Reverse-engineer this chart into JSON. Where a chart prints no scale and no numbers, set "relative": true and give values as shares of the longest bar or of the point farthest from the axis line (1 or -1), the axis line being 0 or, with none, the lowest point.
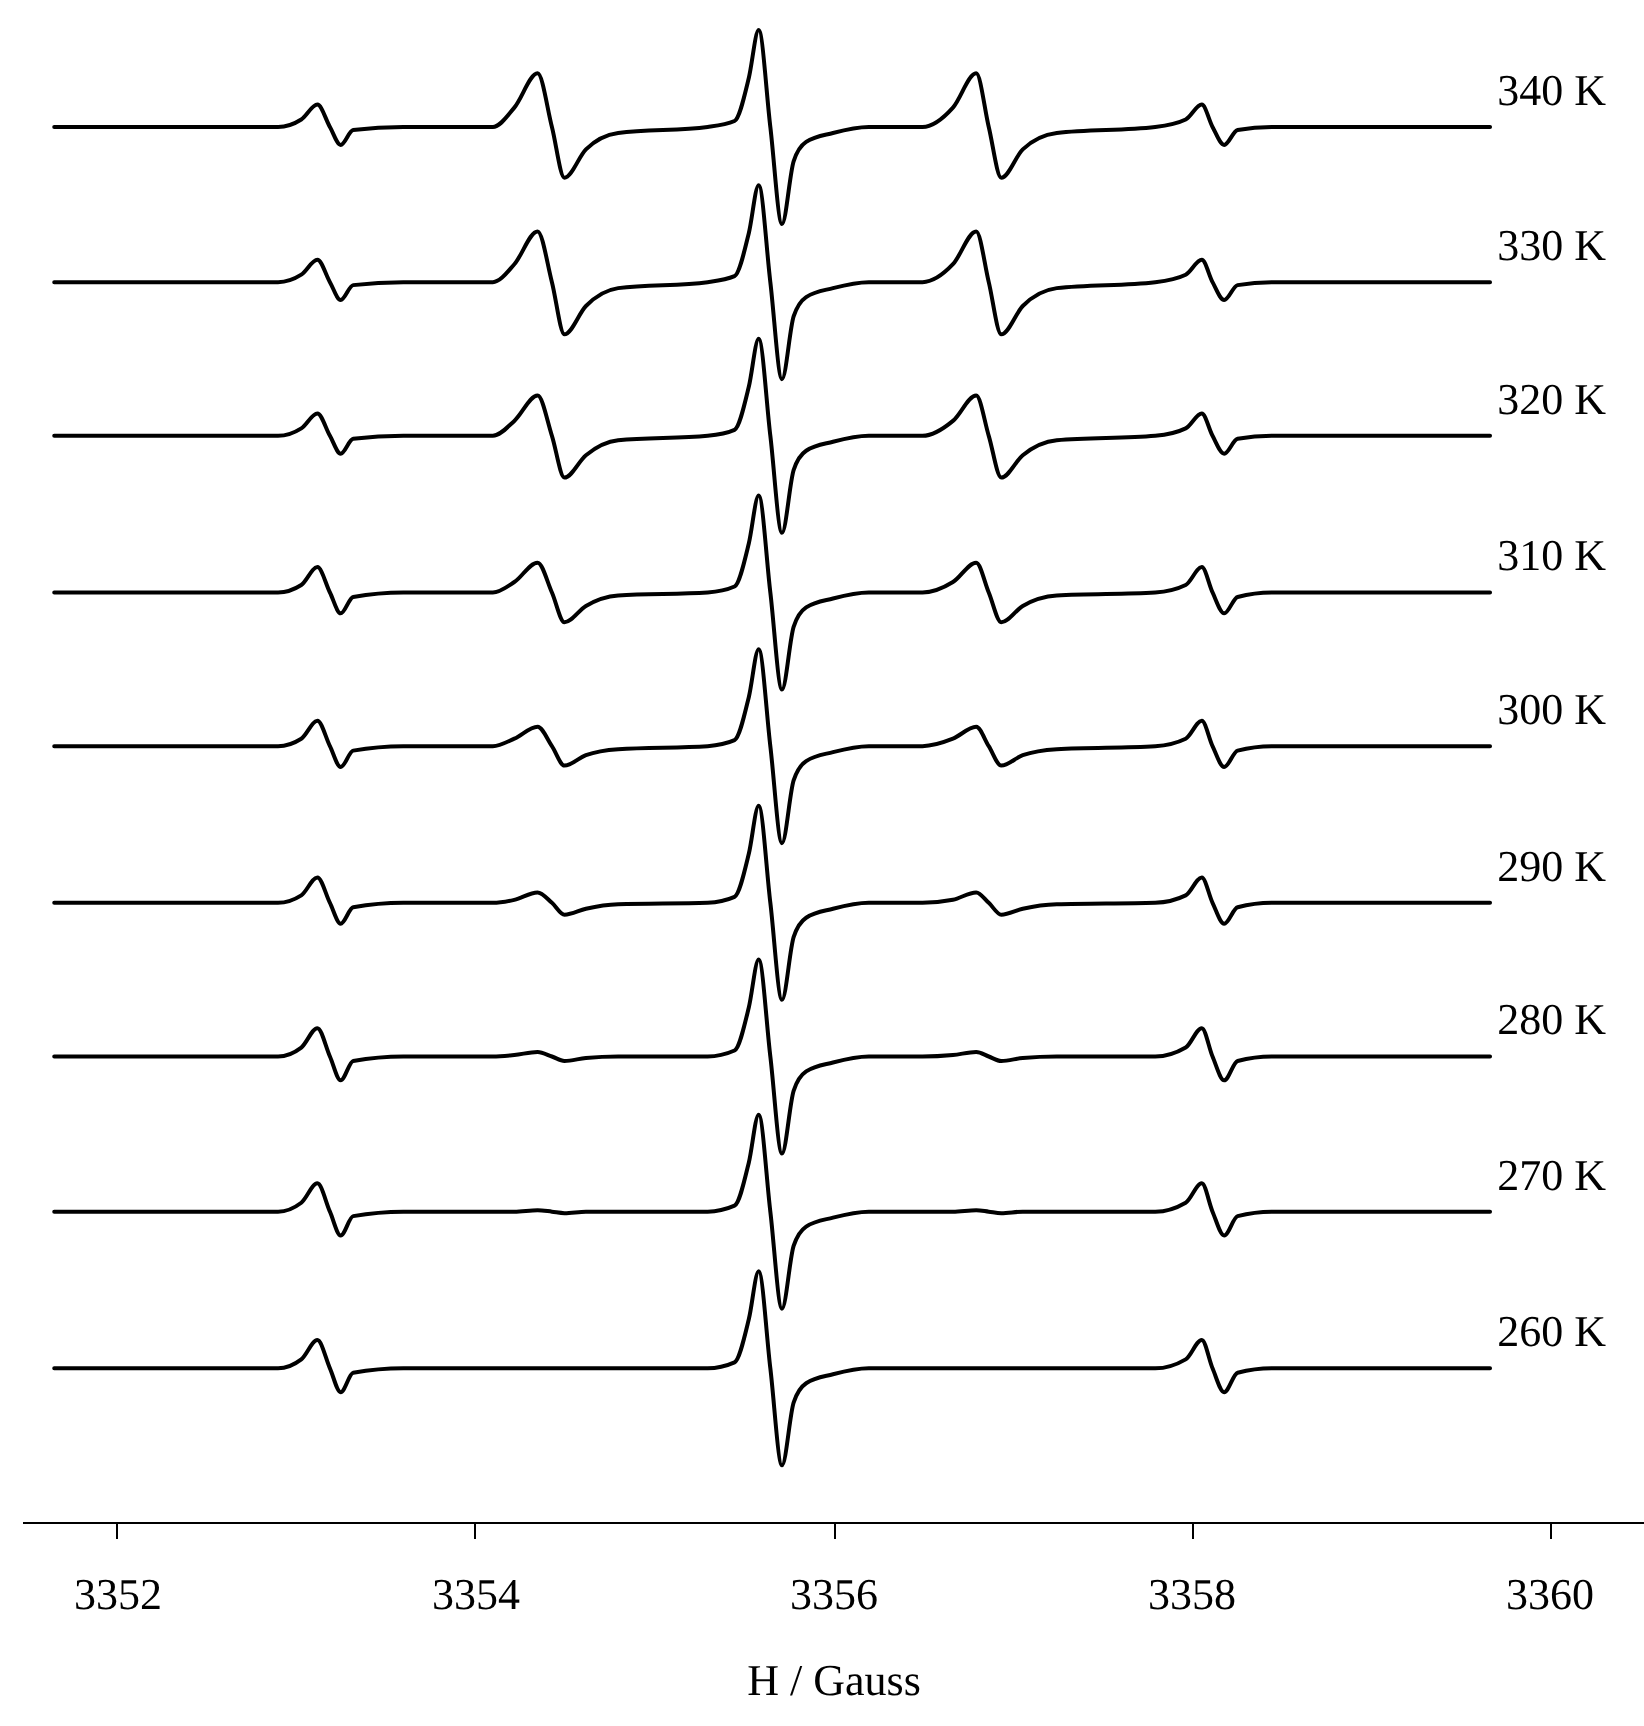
{
  "chart_data": {
    "type": "line",
    "xlabel": "H / Gauss",
    "relative": true,
    "grid": false,
    "marker": "none",
    "line_style": "solid",
    "xlim": [
      3351.47,
      3360.53
    ],
    "xticks": [
      3352,
      3354,
      3356,
      3358,
      3360
    ],
    "x": [
      3351.65,
      3352.9,
      3353.03,
      3353.12,
      3353.19,
      3353.25,
      3353.32,
      3353.6,
      3354.1,
      3354.22,
      3354.35,
      3354.43,
      3354.5,
      3354.62,
      3354.8,
      3355.3,
      3355.45,
      3355.53,
      3355.585,
      3355.65,
      3355.715,
      3355.78,
      3355.85,
      3356.0,
      3356.2,
      3356.5,
      3356.67,
      3356.8,
      3356.87,
      3356.94,
      3357.06,
      3357.25,
      3357.8,
      3357.97,
      3358.06,
      3358.12,
      3358.185,
      3358.26,
      3358.45,
      3359.67
    ],
    "series": [
      {
        "name": "340 K",
        "color": "#000000",
        "values": [
          0.935,
          0.935,
          0.94,
          0.95,
          0.935,
          0.923,
          0.933,
          0.935,
          0.935,
          0.948,
          0.971,
          0.935,
          0.901,
          0.92,
          0.931,
          0.935,
          0.939,
          0.968,
          1.0,
          0.935,
          0.87,
          0.912,
          0.925,
          0.931,
          0.935,
          0.935,
          0.948,
          0.971,
          0.935,
          0.901,
          0.92,
          0.931,
          0.935,
          0.94,
          0.95,
          0.935,
          0.923,
          0.933,
          0.935,
          0.935
        ]
      },
      {
        "name": "330 K",
        "color": "#000000",
        "values": [
          0.831,
          0.831,
          0.836,
          0.846,
          0.831,
          0.819,
          0.829,
          0.831,
          0.831,
          0.843,
          0.865,
          0.831,
          0.796,
          0.815,
          0.827,
          0.831,
          0.835,
          0.864,
          0.896,
          0.831,
          0.766,
          0.808,
          0.821,
          0.827,
          0.831,
          0.831,
          0.843,
          0.865,
          0.831,
          0.796,
          0.815,
          0.827,
          0.831,
          0.836,
          0.846,
          0.831,
          0.819,
          0.829,
          0.831,
          0.831
        ]
      },
      {
        "name": "320 K",
        "color": "#000000",
        "values": [
          0.728,
          0.728,
          0.733,
          0.743,
          0.728,
          0.716,
          0.726,
          0.728,
          0.728,
          0.738,
          0.755,
          0.728,
          0.7,
          0.715,
          0.725,
          0.728,
          0.732,
          0.761,
          0.793,
          0.728,
          0.663,
          0.705,
          0.718,
          0.724,
          0.728,
          0.728,
          0.738,
          0.755,
          0.728,
          0.7,
          0.715,
          0.725,
          0.728,
          0.733,
          0.743,
          0.728,
          0.716,
          0.726,
          0.728,
          0.728
        ]
      },
      {
        "name": "310 K",
        "color": "#000000",
        "values": [
          0.623,
          0.623,
          0.628,
          0.64,
          0.623,
          0.609,
          0.62,
          0.623,
          0.623,
          0.63,
          0.643,
          0.623,
          0.603,
          0.614,
          0.621,
          0.623,
          0.627,
          0.656,
          0.688,
          0.623,
          0.558,
          0.6,
          0.613,
          0.619,
          0.623,
          0.623,
          0.63,
          0.643,
          0.623,
          0.603,
          0.614,
          0.621,
          0.623,
          0.628,
          0.64,
          0.623,
          0.609,
          0.62,
          0.623,
          0.623
        ]
      },
      {
        "name": "300 K",
        "color": "#000000",
        "values": [
          0.52,
          0.52,
          0.525,
          0.537,
          0.52,
          0.506,
          0.517,
          0.52,
          0.52,
          0.525,
          0.533,
          0.52,
          0.507,
          0.514,
          0.518,
          0.52,
          0.524,
          0.553,
          0.585,
          0.52,
          0.455,
          0.497,
          0.51,
          0.516,
          0.52,
          0.52,
          0.525,
          0.533,
          0.52,
          0.507,
          0.514,
          0.518,
          0.52,
          0.525,
          0.537,
          0.52,
          0.506,
          0.517,
          0.52,
          0.52
        ]
      },
      {
        "name": "290 K",
        "color": "#000000",
        "values": [
          0.415,
          0.415,
          0.42,
          0.432,
          0.415,
          0.401,
          0.412,
          0.415,
          0.415,
          0.417,
          0.422,
          0.415,
          0.407,
          0.411,
          0.414,
          0.415,
          0.419,
          0.448,
          0.48,
          0.415,
          0.35,
          0.392,
          0.405,
          0.411,
          0.415,
          0.415,
          0.417,
          0.422,
          0.415,
          0.407,
          0.411,
          0.414,
          0.415,
          0.42,
          0.432,
          0.415,
          0.401,
          0.412,
          0.415,
          0.415
        ]
      },
      {
        "name": "280 K",
        "color": "#000000",
        "values": [
          0.312,
          0.312,
          0.318,
          0.331,
          0.312,
          0.296,
          0.309,
          0.312,
          0.312,
          0.313,
          0.315,
          0.312,
          0.309,
          0.311,
          0.312,
          0.312,
          0.316,
          0.345,
          0.377,
          0.312,
          0.247,
          0.289,
          0.302,
          0.308,
          0.312,
          0.312,
          0.313,
          0.315,
          0.312,
          0.309,
          0.311,
          0.312,
          0.312,
          0.318,
          0.331,
          0.312,
          0.296,
          0.309,
          0.312,
          0.312
        ]
      },
      {
        "name": "270 K",
        "color": "#000000",
        "values": [
          0.208,
          0.208,
          0.214,
          0.227,
          0.208,
          0.192,
          0.205,
          0.208,
          0.208,
          0.208,
          0.209,
          0.208,
          0.207,
          0.208,
          0.208,
          0.208,
          0.212,
          0.241,
          0.273,
          0.208,
          0.143,
          0.185,
          0.198,
          0.204,
          0.208,
          0.208,
          0.208,
          0.209,
          0.208,
          0.207,
          0.208,
          0.208,
          0.208,
          0.214,
          0.227,
          0.208,
          0.192,
          0.205,
          0.208,
          0.208
        ]
      },
      {
        "name": "260 K",
        "color": "#000000",
        "values": [
          0.103,
          0.103,
          0.109,
          0.122,
          0.103,
          0.087,
          0.1,
          0.103,
          0.103,
          0.103,
          0.103,
          0.103,
          0.103,
          0.103,
          0.103,
          0.103,
          0.107,
          0.136,
          0.168,
          0.103,
          0.038,
          0.08,
          0.093,
          0.099,
          0.103,
          0.103,
          0.103,
          0.103,
          0.103,
          0.103,
          0.103,
          0.103,
          0.103,
          0.109,
          0.122,
          0.103,
          0.087,
          0.1,
          0.103,
          0.103
        ]
      }
    ]
  }
}
